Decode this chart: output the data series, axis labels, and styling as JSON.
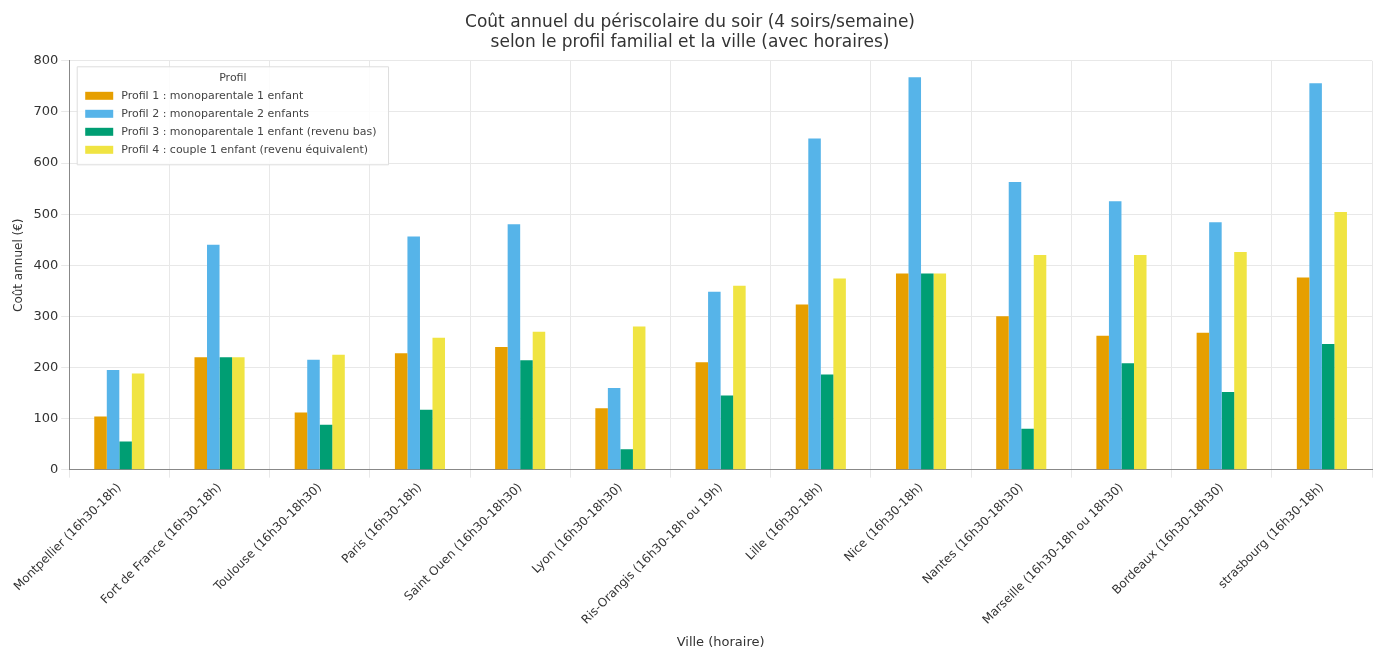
{
  "chart_data": {
    "type": "bar",
    "title": "Coût annuel du périscolaire du soir (4 soirs/semaine)\nselon le profil familial et la ville (avec horaires)",
    "xlabel": "Ville (horaire)",
    "ylabel": "Coût annuel (€)",
    "legend_title": "Profil",
    "legend": "top left",
    "grid": true,
    "categories": [
      "Montpellier (16h30-18h)",
      "Fort de France (16h30-18h)",
      "Toulouse (16h30-18h30)",
      "Paris (16h30-18h)",
      "Saint Ouen (16h30-18h30)",
      "Lyon (16h30-18h30)",
      "Ris-Orangis (16h30-18h ou 19h)",
      "Lille (16h30-18h)",
      "Nice (16h30-18h)",
      "Nantes (16h30-18h30)",
      "Marseille (16h30-18h ou 18h30)",
      "Bordeaux (16h30-18h30)",
      "strasbourg (16h30-18h)"
    ],
    "ylim": [
      0,
      800
    ],
    "yticks": [
      0,
      100,
      200,
      300,
      400,
      500,
      600,
      700,
      800
    ],
    "series": [
      {
        "name": "Profil 1 : monoparentale 1 enfant",
        "color": "#e69f00",
        "values": [
          104,
          220,
          112,
          228,
          240,
          120,
          210,
          323,
          384,
          300,
          262,
          268,
          376
        ]
      },
      {
        "name": "Profil 2 : monoparentale 2 enfants",
        "color": "#56b4e9",
        "values": [
          195,
          440,
          215,
          456,
          480,
          160,
          348,
          648,
          768,
          563,
          525,
          484,
          756
        ]
      },
      {
        "name": "Profil 3 : monoparentale 1 enfant (revenu bas)",
        "color": "#009e73",
        "values": [
          55,
          220,
          88,
          117,
          214,
          40,
          145,
          186,
          384,
          80,
          208,
          152,
          246
        ]
      },
      {
        "name": "Profil 4 : couple 1 enfant (revenu équivalent)",
        "color": "#f0e442",
        "values": [
          188,
          220,
          225,
          258,
          270,
          280,
          360,
          374,
          384,
          420,
          420,
          426,
          504
        ]
      }
    ]
  }
}
